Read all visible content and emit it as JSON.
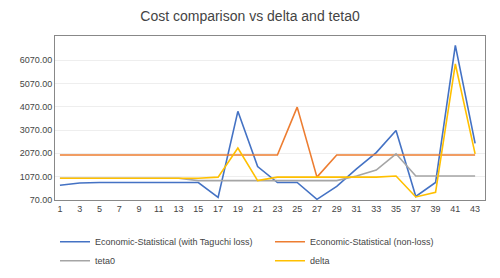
{
  "chart_data": {
    "type": "line",
    "title": "Cost comparison vs delta and teta0",
    "x": [
      1,
      3,
      5,
      7,
      9,
      11,
      13,
      15,
      17,
      19,
      21,
      23,
      25,
      27,
      29,
      31,
      33,
      35,
      37,
      39,
      41,
      43
    ],
    "series": [
      {
        "name": "Economic-Statistical (with Taguchi loss)",
        "color": "#4472C4",
        "values": [
          700,
          800,
          820,
          820,
          820,
          820,
          820,
          820,
          180,
          3870,
          1500,
          820,
          820,
          100,
          650,
          1400,
          2100,
          3050,
          220,
          820,
          6700,
          2500
        ]
      },
      {
        "name": "Economic-Statistical (non-loss)",
        "color": "#ED7D31",
        "values": [
          2000,
          2000,
          2000,
          2000,
          2000,
          2000,
          2000,
          2000,
          2000,
          2000,
          2000,
          2000,
          4050,
          1050,
          2000,
          2000,
          2000,
          2000,
          2000,
          2000,
          2000,
          2000
        ]
      },
      {
        "name": "teta0",
        "color": "#A5A5A5",
        "values": [
          1000,
          1000,
          1000,
          1000,
          1000,
          1000,
          1000,
          900,
          900,
          900,
          900,
          900,
          900,
          900,
          900,
          1100,
          1350,
          2050,
          1100,
          1100,
          1100,
          1100
        ]
      },
      {
        "name": "delta",
        "color": "#FFC000",
        "values": [
          1000,
          1000,
          1000,
          1000,
          1000,
          1000,
          1000,
          1000,
          1050,
          2300,
          900,
          1050,
          1050,
          1050,
          1050,
          1050,
          1050,
          1100,
          200,
          400,
          5900,
          2050
        ]
      }
    ],
    "xlim": [
      0.5,
      44
    ],
    "xticks": [
      1,
      3,
      5,
      7,
      9,
      11,
      13,
      15,
      17,
      19,
      21,
      23,
      25,
      27,
      29,
      31,
      33,
      35,
      37,
      39,
      41,
      43
    ],
    "ylim": [
      70,
      7100
    ],
    "yticks": [
      {
        "value": 70,
        "label": "70.00"
      },
      {
        "value": 1070,
        "label": "1070.00"
      },
      {
        "value": 2070,
        "label": "2070.00"
      },
      {
        "value": 3070,
        "label": "3070.00"
      },
      {
        "value": 4070,
        "label": "4070.00"
      },
      {
        "value": 5070,
        "label": "5070.00"
      },
      {
        "value": 6070,
        "label": "6070.00"
      }
    ],
    "grid": "y",
    "legend": "bottom"
  }
}
